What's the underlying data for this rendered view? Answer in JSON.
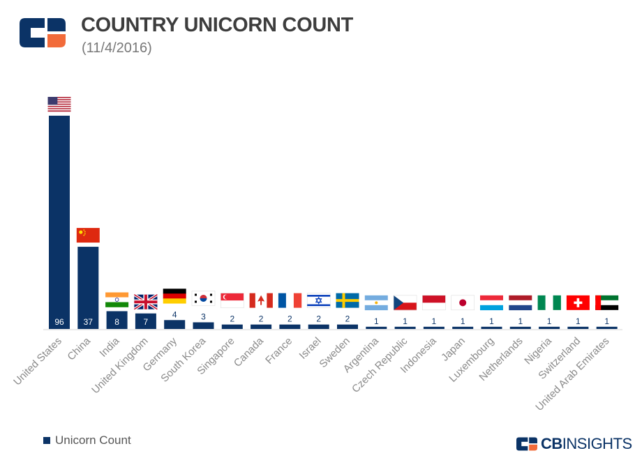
{
  "header": {
    "title": "COUNTRY UNICORN COUNT",
    "subtitle": "(11/4/2016)"
  },
  "legend": {
    "label": "Unicorn Count"
  },
  "brand": {
    "name_bold": "CB",
    "name_light": "INSIGHTS"
  },
  "colors": {
    "bar": "#0b3366",
    "brand_blue": "#0b3366",
    "brand_orange": "#f26b3a"
  },
  "chart_data": {
    "type": "bar",
    "title": "COUNTRY UNICORN COUNT",
    "subtitle": "(11/4/2016)",
    "series": [
      {
        "name": "Unicorn Count"
      }
    ],
    "categories": [
      "United States",
      "China",
      "India",
      "United Kingdom",
      "Germany",
      "South Korea",
      "Singapore",
      "Canada",
      "France",
      "Israel",
      "Sweden",
      "Argentina",
      "Czech Republic",
      "Indonesia",
      "Japan",
      "Luxembourg",
      "Netherlands",
      "Nigeria",
      "Switzerland",
      "United Arab Emirates"
    ],
    "values": [
      96,
      37,
      8,
      7,
      4,
      3,
      2,
      2,
      2,
      2,
      2,
      1,
      1,
      1,
      1,
      1,
      1,
      1,
      1,
      1
    ],
    "flags": [
      "us",
      "cn",
      "in",
      "gb",
      "de",
      "kr",
      "sg",
      "ca",
      "fr",
      "il",
      "se",
      "ar",
      "cz",
      "id",
      "jp",
      "lu",
      "nl",
      "ng",
      "ch",
      "ae"
    ],
    "ylim": [
      0,
      96
    ],
    "xlabel": "",
    "ylabel": "",
    "grid": false,
    "legend": "bottom-left"
  }
}
